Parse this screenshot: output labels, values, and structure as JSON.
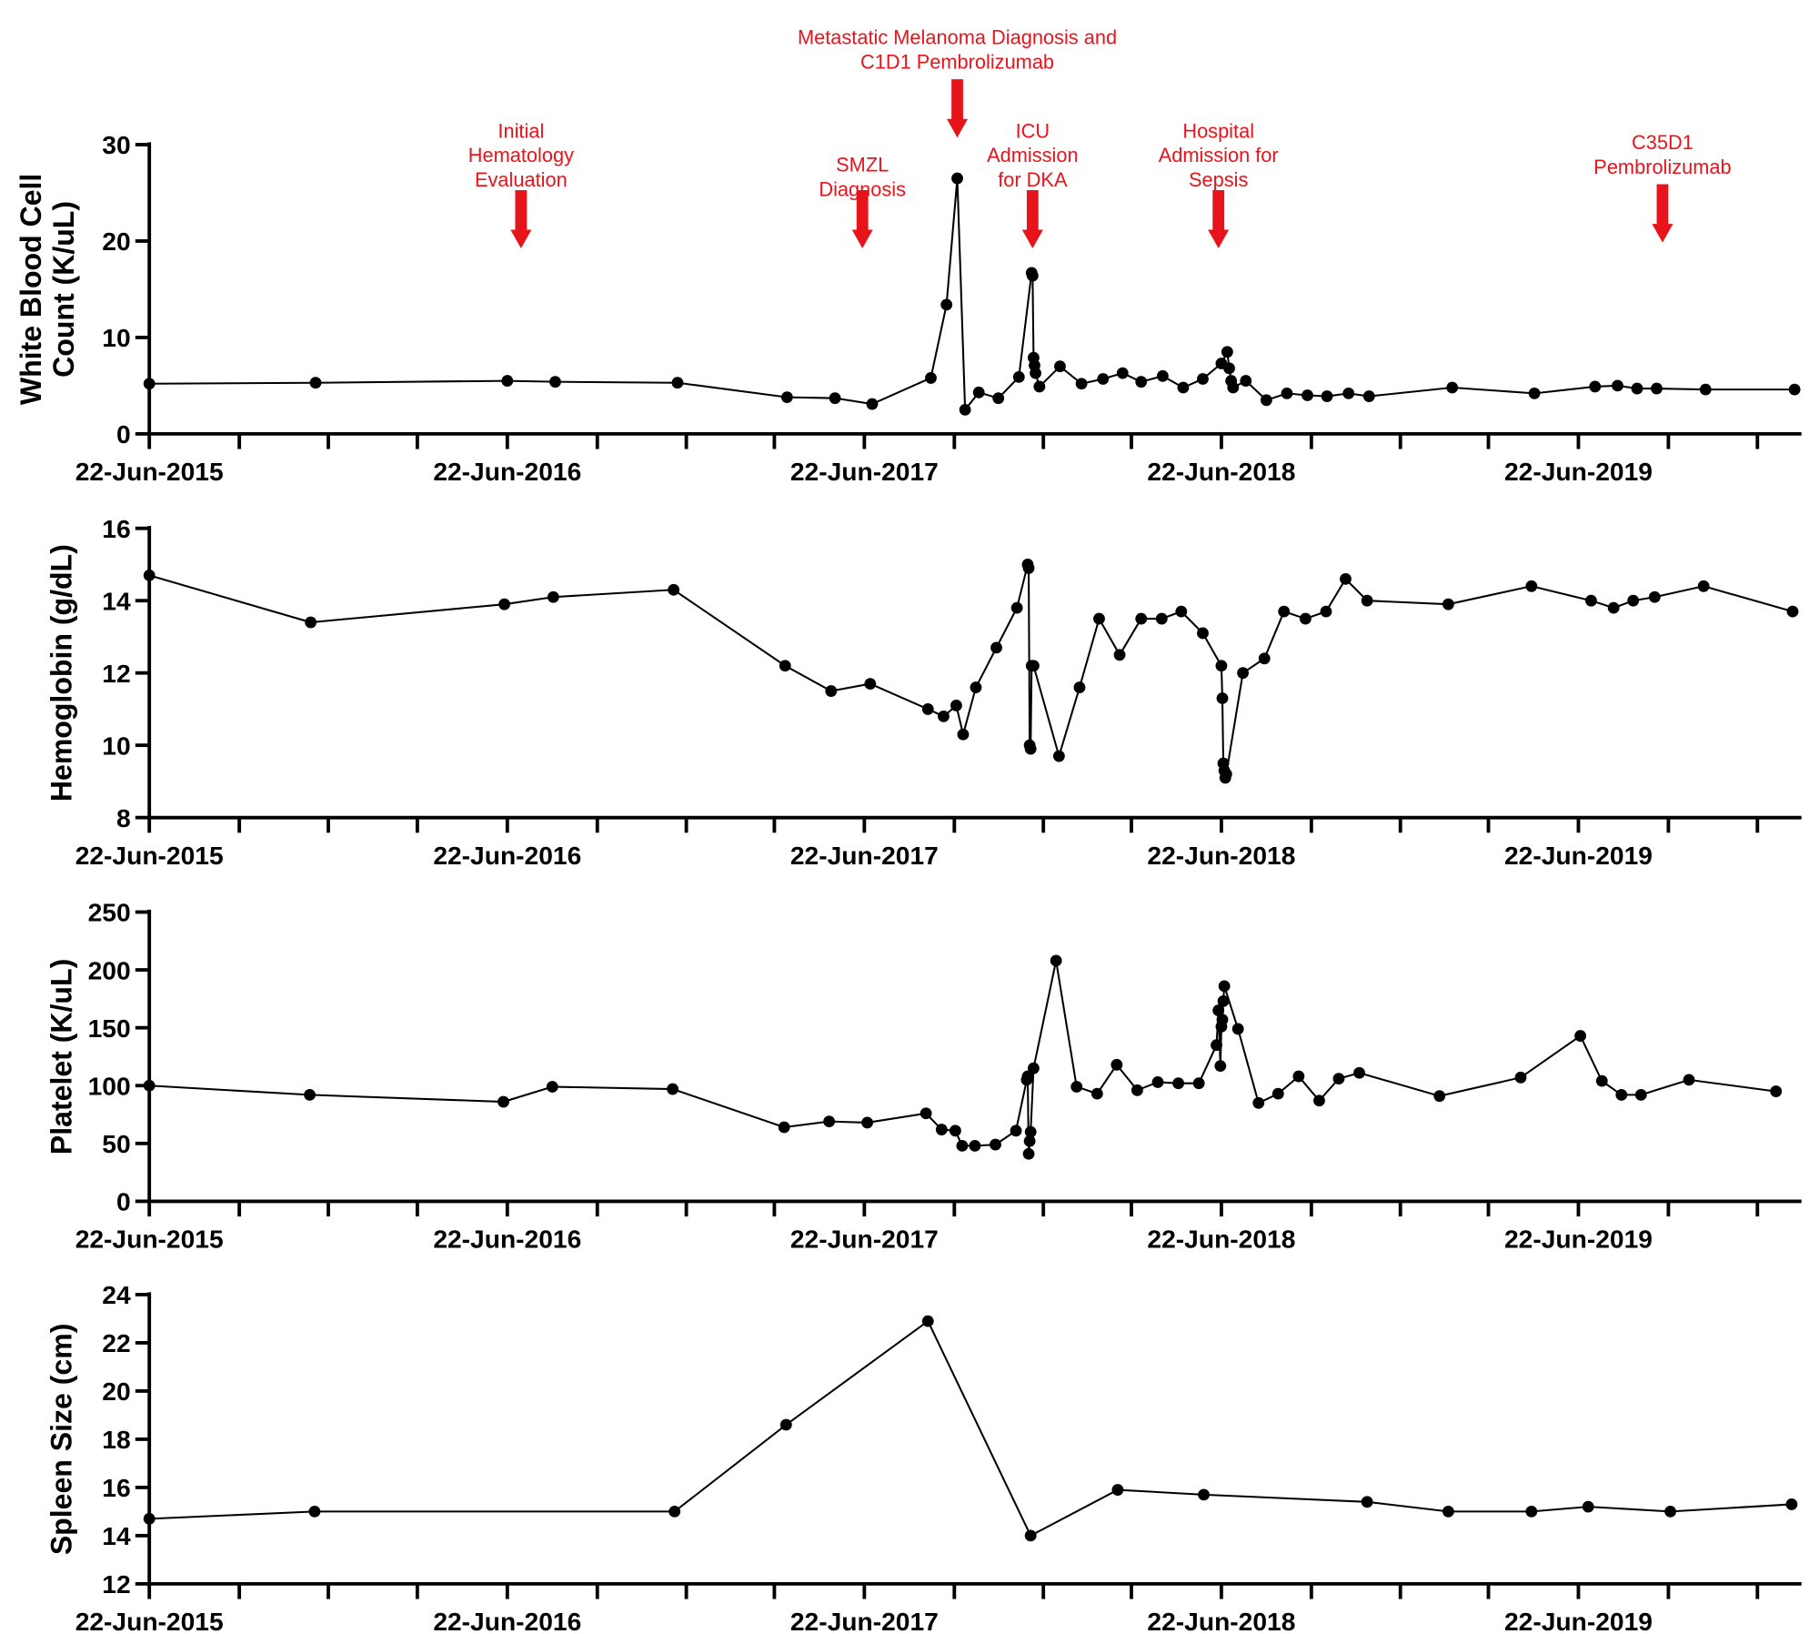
{
  "chart_data": [
    {
      "type": "line",
      "ylabel": [
        "White Blood Cell",
        "Count (K/uL)"
      ],
      "color": "#000000",
      "x": [
        "2015-06-22",
        "2015-12-09",
        "2016-06-22",
        "2016-08-10",
        "2016-12-13",
        "2017-04-04",
        "2017-05-23",
        "2017-06-30",
        "2017-08-29",
        "2017-09-14",
        "2017-09-25",
        "2017-10-03",
        "2017-10-17",
        "2017-11-06",
        "2017-11-27",
        "2017-12-10",
        "2017-12-11",
        "2017-12-12",
        "2017-12-13",
        "2017-12-14",
        "2017-12-18",
        "2018-01-08",
        "2018-01-30",
        "2018-02-21",
        "2018-03-13",
        "2018-04-01",
        "2018-04-23",
        "2018-05-14",
        "2018-06-03",
        "2018-06-22",
        "2018-06-28",
        "2018-06-30",
        "2018-07-02",
        "2018-07-04",
        "2018-07-17",
        "2018-08-07",
        "2018-08-28",
        "2018-09-18",
        "2018-10-08",
        "2018-10-30",
        "2018-11-20",
        "2019-02-13",
        "2019-05-08",
        "2019-07-09",
        "2019-08-01",
        "2019-08-21",
        "2019-09-10",
        "2019-10-30",
        "2020-01-29"
      ],
      "values": [
        5.2,
        5.3,
        5.5,
        5.4,
        5.3,
        3.8,
        3.7,
        3.1,
        5.8,
        13.4,
        26.5,
        2.5,
        4.3,
        3.7,
        5.9,
        16.7,
        16.4,
        7.9,
        7.1,
        6.3,
        4.9,
        7.0,
        5.2,
        5.7,
        6.3,
        5.4,
        6.0,
        4.8,
        5.7,
        7.3,
        8.5,
        6.8,
        5.5,
        4.8,
        5.5,
        3.5,
        4.2,
        4.0,
        3.9,
        4.2,
        3.9,
        4.8,
        4.2,
        4.9,
        5.0,
        4.7,
        4.7,
        4.6,
        4.6
      ],
      "ylim": [
        0,
        30
      ],
      "yticks": [
        0,
        10,
        20,
        30
      ],
      "xlim": [
        "2015-06-22",
        "2020-02-05"
      ],
      "xticks": [
        {
          "value": "2015-06-22",
          "label": "22-Jun-2015"
        },
        {
          "value": "2016-06-22",
          "label": "22-Jun-2016"
        },
        {
          "value": "2017-06-22",
          "label": "22-Jun-2017"
        },
        {
          "value": "2018-06-22",
          "label": "22-Jun-2018"
        },
        {
          "value": "2019-06-22",
          "label": "22-Jun-2019"
        }
      ],
      "xminorticks": [
        "2015-09-22",
        "2015-12-22",
        "2016-03-22",
        "2016-09-22",
        "2016-12-22",
        "2017-03-22",
        "2017-09-22",
        "2017-12-22",
        "2018-03-22",
        "2018-09-22",
        "2018-12-22",
        "2019-03-22",
        "2019-09-22",
        "2019-12-22"
      ],
      "annotation_color": "#e8141c",
      "annotations": [
        {
          "x": "2016-07-06",
          "text": [
            "Initial",
            "Hematology",
            "Evaluation"
          ]
        },
        {
          "x": "2017-06-20",
          "text": [
            "SMZL",
            "Diagnosis"
          ]
        },
        {
          "x": "2017-09-25",
          "text": [
            "Metastatic Melanoma Diagnosis and",
            "C1D1 Pembrolizumab"
          ]
        },
        {
          "x": "2017-12-11",
          "text": [
            "ICU",
            "Admission",
            "for DKA"
          ]
        },
        {
          "x": "2018-06-19",
          "text": [
            "Hospital",
            "Admission for",
            "Sepsis"
          ]
        },
        {
          "x": "2019-09-16",
          "text": [
            "C35D1",
            "Pembrolizumab"
          ]
        }
      ]
    },
    {
      "type": "line",
      "ylabel": [
        "Hemoglobin (g/dL)"
      ],
      "color": "#000000",
      "x": [
        "2015-06-22",
        "2015-12-04",
        "2016-06-19",
        "2016-08-08",
        "2016-12-09",
        "2017-04-02",
        "2017-05-19",
        "2017-06-28",
        "2017-08-26",
        "2017-09-11",
        "2017-09-24",
        "2017-10-01",
        "2017-10-14",
        "2017-11-04",
        "2017-11-25",
        "2017-12-06",
        "2017-12-07",
        "2017-12-08",
        "2017-12-09",
        "2017-12-10",
        "2017-12-12",
        "2018-01-07",
        "2018-01-28",
        "2018-02-17",
        "2018-03-10",
        "2018-04-01",
        "2018-04-22",
        "2018-05-12",
        "2018-06-03",
        "2018-06-22",
        "2018-06-23",
        "2018-06-24",
        "2018-06-25",
        "2018-06-26",
        "2018-06-27",
        "2018-07-14",
        "2018-08-05",
        "2018-08-25",
        "2018-09-16",
        "2018-10-07",
        "2018-10-27",
        "2018-11-18",
        "2019-02-09",
        "2019-05-05",
        "2019-07-05",
        "2019-07-28",
        "2019-08-17",
        "2019-09-08",
        "2019-10-28",
        "2020-01-27"
      ],
      "values": [
        14.7,
        13.4,
        13.9,
        14.1,
        14.3,
        12.2,
        11.5,
        11.7,
        11.0,
        10.8,
        11.1,
        10.3,
        11.6,
        12.7,
        13.8,
        15.0,
        14.9,
        10.0,
        9.9,
        12.2,
        12.2,
        9.7,
        11.6,
        13.5,
        12.5,
        13.5,
        13.5,
        13.7,
        13.1,
        12.2,
        11.3,
        9.5,
        9.3,
        9.1,
        9.2,
        12.0,
        12.4,
        13.7,
        13.5,
        13.7,
        14.6,
        14.0,
        13.9,
        14.4,
        14.0,
        13.8,
        14.0,
        14.1,
        14.4,
        13.7
      ],
      "ylim": [
        8,
        16
      ],
      "yticks": [
        8,
        10,
        12,
        14,
        16
      ],
      "xlim": [
        "2015-06-22",
        "2020-02-05"
      ],
      "xticks": [
        {
          "value": "2015-06-22",
          "label": "22-Jun-2015"
        },
        {
          "value": "2016-06-22",
          "label": "22-Jun-2016"
        },
        {
          "value": "2017-06-22",
          "label": "22-Jun-2017"
        },
        {
          "value": "2018-06-22",
          "label": "22-Jun-2018"
        },
        {
          "value": "2019-06-22",
          "label": "22-Jun-2019"
        }
      ],
      "xminorticks": [
        "2015-09-22",
        "2015-12-22",
        "2016-03-22",
        "2016-09-22",
        "2016-12-22",
        "2017-03-22",
        "2017-09-22",
        "2017-12-22",
        "2018-03-22",
        "2018-09-22",
        "2018-12-22",
        "2019-03-22",
        "2019-09-22",
        "2019-12-22"
      ]
    },
    {
      "type": "line",
      "ylabel": [
        "Platelet (K/uL)"
      ],
      "color": "#000000",
      "x": [
        "2015-06-22",
        "2015-12-03",
        "2016-06-18",
        "2016-08-07",
        "2016-12-08",
        "2017-04-01",
        "2017-05-17",
        "2017-06-25",
        "2017-08-24",
        "2017-09-09",
        "2017-09-23",
        "2017-09-30",
        "2017-10-13",
        "2017-11-03",
        "2017-11-24",
        "2017-12-05",
        "2017-12-06",
        "2017-12-07",
        "2017-12-08",
        "2017-12-09",
        "2017-12-12",
        "2018-01-04",
        "2018-01-25",
        "2018-02-15",
        "2018-03-07",
        "2018-03-28",
        "2018-04-18",
        "2018-05-09",
        "2018-05-30",
        "2018-06-17",
        "2018-06-19",
        "2018-06-21",
        "2018-06-22",
        "2018-06-23",
        "2018-06-24",
        "2018-06-25",
        "2018-07-09",
        "2018-07-30",
        "2018-08-19",
        "2018-09-09",
        "2018-09-30",
        "2018-10-20",
        "2018-11-10",
        "2019-01-31",
        "2019-04-24",
        "2019-06-24",
        "2019-07-16",
        "2019-08-05",
        "2019-08-25",
        "2019-10-13",
        "2020-01-10"
      ],
      "values": [
        100,
        92,
        86,
        99,
        97,
        64,
        69,
        68,
        76,
        62,
        61,
        48,
        48,
        49,
        61,
        105,
        108,
        41,
        52,
        60,
        115,
        208,
        99,
        93,
        118,
        96,
        103,
        102,
        102,
        135,
        165,
        117,
        151,
        157,
        173,
        186,
        149,
        85,
        93,
        108,
        87,
        106,
        111,
        91,
        107,
        143,
        104,
        92,
        92,
        105,
        95
      ],
      "ylim": [
        0,
        250
      ],
      "yticks": [
        0,
        50,
        100,
        150,
        200,
        250
      ],
      "xlim": [
        "2015-06-22",
        "2020-02-05"
      ],
      "xticks": [
        {
          "value": "2015-06-22",
          "label": "22-Jun-2015"
        },
        {
          "value": "2016-06-22",
          "label": "22-Jun-2016"
        },
        {
          "value": "2017-06-22",
          "label": "22-Jun-2017"
        },
        {
          "value": "2018-06-22",
          "label": "22-Jun-2018"
        },
        {
          "value": "2019-06-22",
          "label": "22-Jun-2019"
        }
      ],
      "xminorticks": [
        "2015-09-22",
        "2015-12-22",
        "2016-03-22",
        "2016-09-22",
        "2016-12-22",
        "2017-03-22",
        "2017-09-22",
        "2017-12-22",
        "2018-03-22",
        "2018-09-22",
        "2018-12-22",
        "2019-03-22",
        "2019-09-22",
        "2019-12-22"
      ]
    },
    {
      "type": "line",
      "ylabel": [
        "Spleen Size (cm)"
      ],
      "color": "#000000",
      "x": [
        "2015-06-22",
        "2015-12-08",
        "2016-12-10",
        "2017-04-03",
        "2017-08-26",
        "2017-12-09",
        "2018-03-08",
        "2018-06-04",
        "2018-11-18",
        "2019-02-09",
        "2019-05-05",
        "2019-07-02",
        "2019-09-24",
        "2020-01-26"
      ],
      "values": [
        14.7,
        15.0,
        15.0,
        18.6,
        22.9,
        14.0,
        15.9,
        15.7,
        15.4,
        15.0,
        15.0,
        15.2,
        15.0,
        15.3
      ],
      "ylim": [
        12,
        24
      ],
      "yticks": [
        12,
        14,
        16,
        18,
        20,
        22,
        24
      ],
      "xlim": [
        "2015-06-22",
        "2020-02-05"
      ],
      "xticks": [
        {
          "value": "2015-06-22",
          "label": "22-Jun-2015"
        },
        {
          "value": "2016-06-22",
          "label": "22-Jun-2016"
        },
        {
          "value": "2017-06-22",
          "label": "22-Jun-2017"
        },
        {
          "value": "2018-06-22",
          "label": "22-Jun-2018"
        },
        {
          "value": "2019-06-22",
          "label": "22-Jun-2019"
        }
      ],
      "xminorticks": [
        "2015-09-22",
        "2015-12-22",
        "2016-03-22",
        "2016-09-22",
        "2016-12-22",
        "2017-03-22",
        "2017-09-22",
        "2017-12-22",
        "2018-03-22",
        "2018-09-22",
        "2018-12-22",
        "2019-03-22",
        "2019-09-22",
        "2019-12-22"
      ]
    }
  ]
}
